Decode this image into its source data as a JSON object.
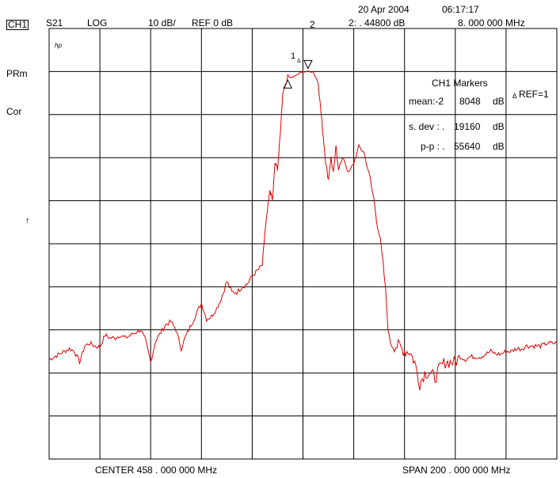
{
  "header": {
    "channel": "CH1",
    "param": "S21",
    "format": "LOG",
    "scale": "10 dB/",
    "ref": "REF 0 dB",
    "date": "20 Apr 2004",
    "time": "06:17:17",
    "marker_readout": "2: . 44800  dB",
    "marker_freq": "8. 000  000  MHz"
  },
  "side_labels": {
    "prm": "PRm",
    "cor": "Cor",
    "ref_arrow": "↑"
  },
  "hp_logo": "hp",
  "markers": {
    "title": "CH1 Markers",
    "ref_note": "REF=1",
    "mean_label": "mean:-2",
    "mean_value": "8048",
    "sdev_label": "s. dev : .",
    "sdev_value": "19160",
    "pp_label": "p-p  : .",
    "pp_value": "55640",
    "unit": "dB",
    "m1_label": "1",
    "m2_label": "2"
  },
  "footer": {
    "center": "CENTER  458 . 000  000  MHz",
    "span": "SPAN  200 . 000  000  MHz"
  },
  "colors": {
    "trace": "#e00000",
    "grid": "#000000"
  },
  "chart_data": {
    "type": "line",
    "grid": true,
    "xlim": [
      358,
      558
    ],
    "ylim": [
      -70,
      10
    ],
    "x_unit": "MHz",
    "y_unit": "dB",
    "series": [
      {
        "values_x": [
          358,
          360,
          362,
          364,
          366,
          368,
          370,
          372,
          374,
          376,
          378,
          380,
          382,
          384,
          386,
          388,
          390,
          392,
          394,
          396,
          398,
          400,
          402,
          404,
          406,
          408,
          410,
          412,
          414,
          416,
          418,
          420,
          422,
          424,
          426,
          428,
          430,
          432,
          434,
          436,
          438,
          440,
          442,
          443,
          444,
          445,
          446,
          447,
          448,
          449,
          450,
          452,
          454,
          456,
          458,
          460,
          462,
          464,
          465,
          466,
          467,
          468,
          469,
          470,
          471,
          472,
          474,
          476,
          478,
          480,
          482,
          484,
          486,
          488,
          490,
          492,
          494,
          496,
          498,
          500,
          502,
          504,
          506,
          508,
          510,
          512,
          514,
          516,
          518,
          520,
          522,
          524,
          526,
          528,
          530,
          532,
          534,
          536,
          538,
          540,
          542,
          544,
          546,
          548,
          550,
          552,
          554,
          556,
          558
        ],
        "values_y": [
          -51.5,
          -51,
          -50.5,
          -50,
          -49.5,
          -50,
          -52,
          -49,
          -48.5,
          -49,
          -49.2,
          -47,
          -47.5,
          -47.5,
          -47,
          -47.5,
          -47,
          -46.5,
          -46,
          -48,
          -52,
          -48,
          -46.5,
          -45,
          -44.5,
          -46,
          -49.5,
          -47,
          -45,
          -43,
          -41,
          -44,
          -43.5,
          -42,
          -40,
          -37,
          -39,
          -39,
          -38,
          -37.5,
          -36,
          -35,
          -34,
          -28,
          -24,
          -20,
          -22,
          -15,
          -16,
          -10,
          -2,
          1,
          1,
          1.5,
          2,
          2,
          2,
          0,
          -5,
          -10,
          -15,
          -18,
          -14,
          -17,
          -12,
          -16,
          -14,
          -17,
          -15,
          -12,
          -13,
          -17,
          -22,
          -28,
          -36,
          -48,
          -49,
          -49,
          -50,
          -50,
          -52,
          -56,
          -54,
          -54,
          -55,
          -53,
          -52,
          -52,
          -52,
          -51,
          -51.5,
          -51,
          -51,
          -51,
          -50.5,
          -50,
          -50.5,
          -50.5,
          -50,
          -50,
          -49.5,
          -49.5,
          -49,
          -49,
          -49,
          -49,
          -48.5,
          -48.5,
          -48.5
        ]
      }
    ]
  }
}
